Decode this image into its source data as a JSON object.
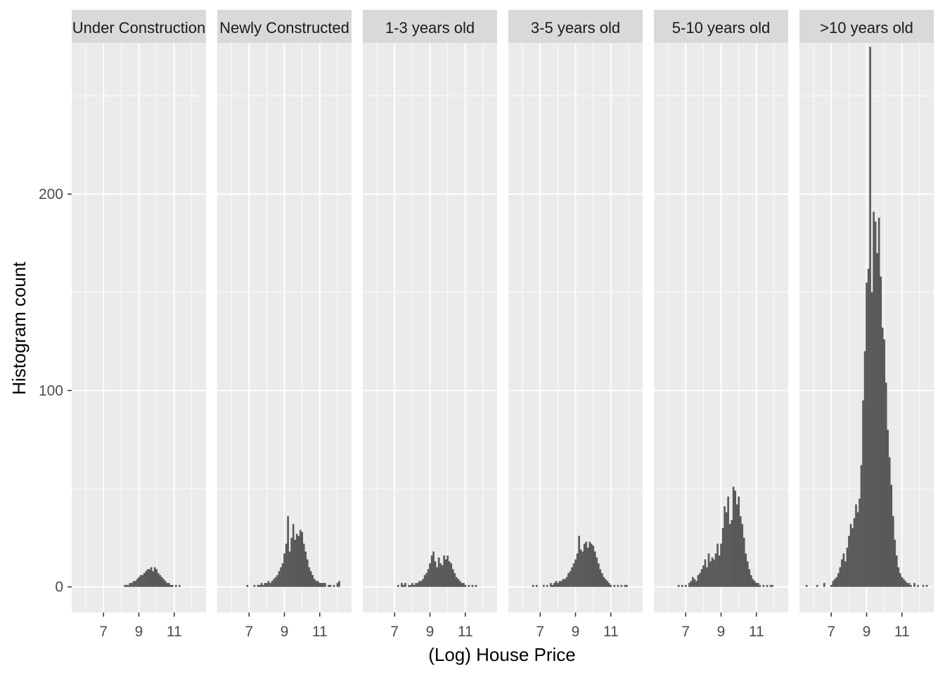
{
  "chart_data": {
    "type": "bar",
    "subtype": "faceted-histogram",
    "xlabel": "(Log) House Price",
    "ylabel": "Histogram count",
    "xlim": [
      5.2,
      12.8
    ],
    "ylim": [
      -13,
      277
    ],
    "x_ticks": [
      7,
      9,
      11
    ],
    "y_ticks": [
      0,
      100,
      200
    ],
    "x_tick_labels": [
      "7",
      "9",
      "11"
    ],
    "y_tick_labels": [
      "0",
      "100",
      "200"
    ],
    "grid": true,
    "colors": {
      "panel_bg": "#ebebeb",
      "grid": "#ffffff",
      "strip_bg": "#d9d9d9",
      "bar": "#595959"
    },
    "facets": [
      {
        "label": "Under Construction",
        "bins": [
          [
            8.2,
            1
          ],
          [
            8.3,
            1
          ],
          [
            8.4,
            1
          ],
          [
            8.5,
            2
          ],
          [
            8.6,
            2
          ],
          [
            8.7,
            3
          ],
          [
            8.8,
            3
          ],
          [
            8.9,
            4
          ],
          [
            9.0,
            5
          ],
          [
            9.1,
            6
          ],
          [
            9.2,
            6
          ],
          [
            9.3,
            7
          ],
          [
            9.4,
            8
          ],
          [
            9.5,
            9
          ],
          [
            9.6,
            9
          ],
          [
            9.7,
            10
          ],
          [
            9.8,
            8
          ],
          [
            9.9,
            10
          ],
          [
            10.0,
            9
          ],
          [
            10.1,
            7
          ],
          [
            10.2,
            6
          ],
          [
            10.3,
            5
          ],
          [
            10.4,
            4
          ],
          [
            10.5,
            3
          ],
          [
            10.6,
            2
          ],
          [
            10.7,
            2
          ],
          [
            10.8,
            1
          ],
          [
            10.9,
            1
          ],
          [
            11.1,
            1
          ],
          [
            11.3,
            1
          ]
        ]
      },
      {
        "label": "Newly Constructed",
        "bins": [
          [
            6.9,
            1
          ],
          [
            7.3,
            1
          ],
          [
            7.5,
            1
          ],
          [
            7.6,
            1
          ],
          [
            7.7,
            2
          ],
          [
            7.8,
            1
          ],
          [
            7.9,
            2
          ],
          [
            8.0,
            2
          ],
          [
            8.1,
            3
          ],
          [
            8.2,
            2
          ],
          [
            8.3,
            3
          ],
          [
            8.4,
            4
          ],
          [
            8.5,
            5
          ],
          [
            8.6,
            6
          ],
          [
            8.7,
            8
          ],
          [
            8.8,
            10
          ],
          [
            8.9,
            12
          ],
          [
            9.0,
            17
          ],
          [
            9.1,
            22
          ],
          [
            9.2,
            36
          ],
          [
            9.3,
            18
          ],
          [
            9.4,
            25
          ],
          [
            9.5,
            32
          ],
          [
            9.6,
            24
          ],
          [
            9.7,
            27
          ],
          [
            9.8,
            26
          ],
          [
            9.9,
            29
          ],
          [
            10.0,
            28
          ],
          [
            10.1,
            22
          ],
          [
            10.2,
            18
          ],
          [
            10.3,
            14
          ],
          [
            10.4,
            10
          ],
          [
            10.5,
            8
          ],
          [
            10.6,
            6
          ],
          [
            10.7,
            4
          ],
          [
            10.8,
            3
          ],
          [
            10.9,
            3
          ],
          [
            11.0,
            2
          ],
          [
            11.1,
            2
          ],
          [
            11.2,
            2
          ],
          [
            11.3,
            2
          ],
          [
            11.5,
            1
          ],
          [
            11.6,
            1
          ],
          [
            11.8,
            1
          ],
          [
            12.0,
            2
          ],
          [
            12.1,
            3
          ]
        ]
      },
      {
        "label": "1-3 years old",
        "bins": [
          [
            7.2,
            1
          ],
          [
            7.4,
            2
          ],
          [
            7.5,
            1
          ],
          [
            7.6,
            2
          ],
          [
            7.8,
            1
          ],
          [
            7.9,
            1
          ],
          [
            8.0,
            2
          ],
          [
            8.1,
            1
          ],
          [
            8.2,
            2
          ],
          [
            8.3,
            2
          ],
          [
            8.4,
            3
          ],
          [
            8.5,
            3
          ],
          [
            8.6,
            4
          ],
          [
            8.7,
            6
          ],
          [
            8.8,
            7
          ],
          [
            8.9,
            9
          ],
          [
            9.0,
            12
          ],
          [
            9.1,
            16
          ],
          [
            9.2,
            18
          ],
          [
            9.3,
            13
          ],
          [
            9.4,
            10
          ],
          [
            9.5,
            15
          ],
          [
            9.6,
            12
          ],
          [
            9.7,
            11
          ],
          [
            9.8,
            16
          ],
          [
            9.9,
            14
          ],
          [
            10.0,
            16
          ],
          [
            10.1,
            13
          ],
          [
            10.2,
            12
          ],
          [
            10.3,
            9
          ],
          [
            10.4,
            7
          ],
          [
            10.5,
            5
          ],
          [
            10.6,
            4
          ],
          [
            10.7,
            3
          ],
          [
            10.8,
            2
          ],
          [
            10.9,
            2
          ],
          [
            11.0,
            1
          ],
          [
            11.2,
            1
          ],
          [
            11.4,
            1
          ],
          [
            11.6,
            1
          ]
        ]
      },
      {
        "label": "3-5 years old",
        "bins": [
          [
            6.6,
            1
          ],
          [
            6.8,
            1
          ],
          [
            7.2,
            1
          ],
          [
            7.4,
            1
          ],
          [
            7.6,
            2
          ],
          [
            7.7,
            1
          ],
          [
            7.8,
            2
          ],
          [
            7.9,
            3
          ],
          [
            8.0,
            2
          ],
          [
            8.1,
            3
          ],
          [
            8.2,
            3
          ],
          [
            8.3,
            4
          ],
          [
            8.4,
            4
          ],
          [
            8.5,
            5
          ],
          [
            8.6,
            7
          ],
          [
            8.7,
            8
          ],
          [
            8.8,
            10
          ],
          [
            8.9,
            12
          ],
          [
            9.0,
            14
          ],
          [
            9.1,
            17
          ],
          [
            9.2,
            26
          ],
          [
            9.3,
            19
          ],
          [
            9.4,
            18
          ],
          [
            9.5,
            22
          ],
          [
            9.6,
            23
          ],
          [
            9.7,
            20
          ],
          [
            9.8,
            23
          ],
          [
            9.9,
            22
          ],
          [
            10.0,
            21
          ],
          [
            10.1,
            18
          ],
          [
            10.2,
            15
          ],
          [
            10.3,
            12
          ],
          [
            10.4,
            9
          ],
          [
            10.5,
            7
          ],
          [
            10.6,
            5
          ],
          [
            10.7,
            4
          ],
          [
            10.8,
            3
          ],
          [
            10.9,
            2
          ],
          [
            11.0,
            1
          ],
          [
            11.2,
            1
          ],
          [
            11.4,
            1
          ],
          [
            11.6,
            1
          ],
          [
            11.8,
            1
          ],
          [
            11.9,
            1
          ]
        ]
      },
      {
        "label": "5-10 years old",
        "bins": [
          [
            6.6,
            1
          ],
          [
            6.8,
            1
          ],
          [
            7.0,
            1
          ],
          [
            7.2,
            2
          ],
          [
            7.3,
            3
          ],
          [
            7.4,
            5
          ],
          [
            7.5,
            4
          ],
          [
            7.6,
            3
          ],
          [
            7.7,
            6
          ],
          [
            7.8,
            7
          ],
          [
            7.9,
            9
          ],
          [
            8.0,
            11
          ],
          [
            8.1,
            14
          ],
          [
            8.2,
            10
          ],
          [
            8.3,
            17
          ],
          [
            8.4,
            13
          ],
          [
            8.5,
            15
          ],
          [
            8.6,
            14
          ],
          [
            8.7,
            17
          ],
          [
            8.8,
            22
          ],
          [
            8.9,
            16
          ],
          [
            9.0,
            22
          ],
          [
            9.1,
            30
          ],
          [
            9.2,
            41
          ],
          [
            9.3,
            38
          ],
          [
            9.4,
            46
          ],
          [
            9.5,
            32
          ],
          [
            9.6,
            34
          ],
          [
            9.7,
            51
          ],
          [
            9.8,
            49
          ],
          [
            9.9,
            42
          ],
          [
            10.0,
            46
          ],
          [
            10.1,
            36
          ],
          [
            10.2,
            32
          ],
          [
            10.3,
            25
          ],
          [
            10.4,
            17
          ],
          [
            10.5,
            13
          ],
          [
            10.6,
            9
          ],
          [
            10.7,
            6
          ],
          [
            10.8,
            4
          ],
          [
            10.9,
            3
          ],
          [
            11.0,
            2
          ],
          [
            11.1,
            2
          ],
          [
            11.2,
            1
          ],
          [
            11.4,
            1
          ],
          [
            11.6,
            1
          ],
          [
            11.8,
            1
          ],
          [
            11.9,
            1
          ]
        ]
      },
      {
        "label": ">10 years old",
        "bins": [
          [
            5.6,
            1
          ],
          [
            6.2,
            1
          ],
          [
            6.6,
            2
          ],
          [
            7.0,
            1
          ],
          [
            7.1,
            3
          ],
          [
            7.2,
            4
          ],
          [
            7.3,
            5
          ],
          [
            7.4,
            7
          ],
          [
            7.5,
            10
          ],
          [
            7.6,
            14
          ],
          [
            7.7,
            17
          ],
          [
            7.8,
            13
          ],
          [
            7.9,
            20
          ],
          [
            8.0,
            26
          ],
          [
            8.1,
            32
          ],
          [
            8.2,
            30
          ],
          [
            8.3,
            35
          ],
          [
            8.4,
            42
          ],
          [
            8.5,
            38
          ],
          [
            8.6,
            45
          ],
          [
            8.7,
            62
          ],
          [
            8.8,
            95
          ],
          [
            8.9,
            120
          ],
          [
            9.0,
            155
          ],
          [
            9.1,
            162
          ],
          [
            9.2,
            275
          ],
          [
            9.3,
            150
          ],
          [
            9.4,
            191
          ],
          [
            9.5,
            186
          ],
          [
            9.6,
            170
          ],
          [
            9.7,
            188
          ],
          [
            9.8,
            158
          ],
          [
            9.9,
            132
          ],
          [
            10.0,
            126
          ],
          [
            10.1,
            104
          ],
          [
            10.2,
            80
          ],
          [
            10.3,
            66
          ],
          [
            10.4,
            52
          ],
          [
            10.5,
            36
          ],
          [
            10.6,
            24
          ],
          [
            10.7,
            16
          ],
          [
            10.8,
            10
          ],
          [
            10.9,
            7
          ],
          [
            11.0,
            5
          ],
          [
            11.1,
            4
          ],
          [
            11.2,
            3
          ],
          [
            11.3,
            2
          ],
          [
            11.4,
            2
          ],
          [
            11.5,
            1
          ],
          [
            11.7,
            2
          ],
          [
            11.9,
            1
          ],
          [
            12.2,
            1
          ],
          [
            12.4,
            1
          ]
        ]
      }
    ]
  }
}
